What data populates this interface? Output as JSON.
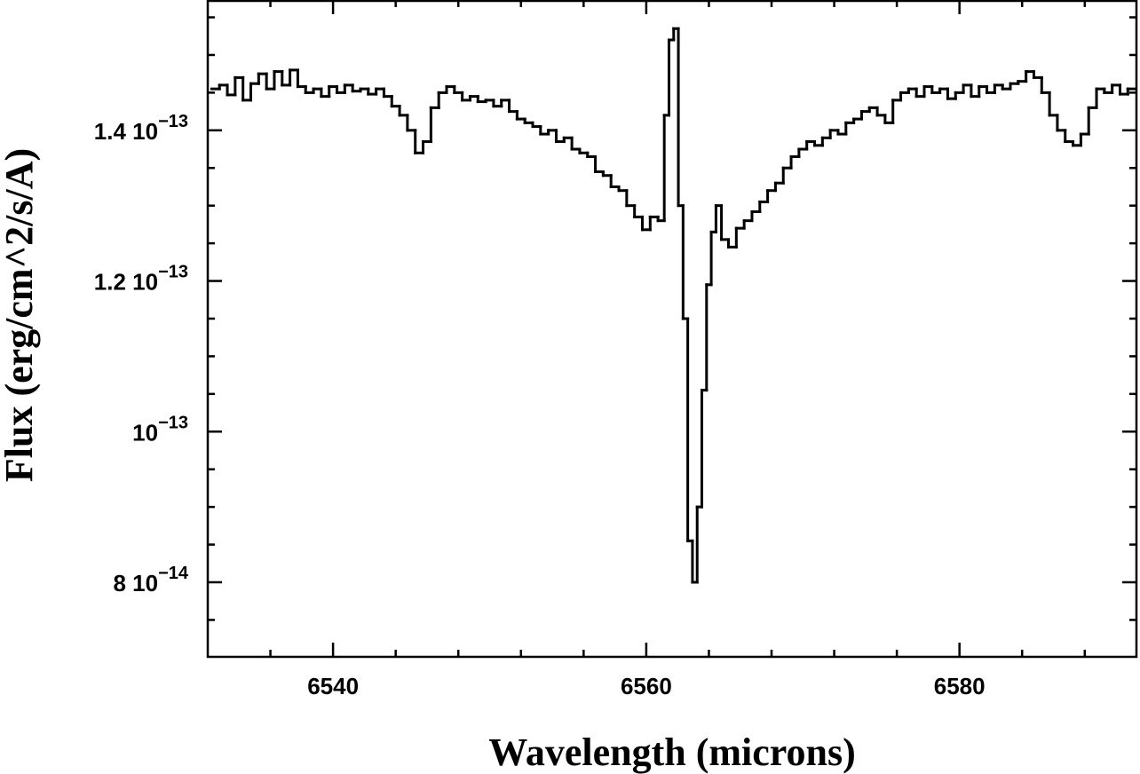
{
  "chart_data": {
    "type": "line",
    "drawstyle": "steps-mid",
    "color": "#000000",
    "xlabel": "Wavelength (microns)",
    "ylabel": "Flux (erg/cm^2/s/A)",
    "xlim": [
      6532,
      6591.3
    ],
    "ylim": [
      7.01e-14,
      1.573e-13
    ],
    "xticks": [
      6540,
      6560,
      6580
    ],
    "xticks_minor": [
      6536,
      6544,
      6548,
      6552,
      6556,
      6564,
      6568,
      6572,
      6576,
      6584,
      6588
    ],
    "yticks": [
      {
        "value": 8e-14,
        "label": "8 10",
        "exponent": "−14"
      },
      {
        "value": 1e-13,
        "label": "10",
        "exponent": "−13"
      },
      {
        "value": 1.2e-13,
        "label": "1.2 10",
        "exponent": "−13"
      },
      {
        "value": 1.4e-13,
        "label": "1.4 10",
        "exponent": "−13"
      }
    ],
    "yticks_minor": [
      7.5e-14,
      8.5e-14,
      9e-14,
      9.5e-14,
      1.05e-13,
      1.1e-13,
      1.15e-13,
      1.25e-13,
      1.3e-13,
      1.35e-13,
      1.45e-13,
      1.5e-13,
      1.55e-13
    ],
    "x": [
      6532.5,
      6533,
      6533.5,
      6534,
      6534.5,
      6535,
      6535.5,
      6536,
      6536.5,
      6537,
      6537.5,
      6538,
      6538.5,
      6539,
      6539.5,
      6540,
      6540.5,
      6541,
      6541.5,
      6542,
      6542.5,
      6543,
      6543.5,
      6544,
      6544.5,
      6545,
      6545.5,
      6546,
      6546.5,
      6547,
      6547.5,
      6548,
      6548.5,
      6549,
      6549.5,
      6550,
      6550.5,
      6551,
      6551.5,
      6552,
      6552.5,
      6553,
      6553.5,
      6554,
      6554.5,
      6555,
      6555.5,
      6556,
      6556.5,
      6557,
      6557.5,
      6558,
      6558.5,
      6559,
      6559.5,
      6560,
      6560.5,
      6561,
      6561.3,
      6561.6,
      6561.9,
      6562.2,
      6562.5,
      6562.8,
      6563.1,
      6563.4,
      6563.7,
      6564,
      6564.3,
      6564.6,
      6565,
      6565.5,
      6566,
      6566.5,
      6567,
      6567.5,
      6568,
      6568.5,
      6569,
      6569.5,
      6570,
      6570.5,
      6571,
      6571.5,
      6572,
      6572.5,
      6573,
      6573.5,
      6574,
      6574.5,
      6575,
      6575.5,
      6576,
      6576.5,
      6577,
      6577.5,
      6578,
      6578.5,
      6579,
      6579.5,
      6580,
      6580.5,
      6581,
      6581.5,
      6582,
      6582.5,
      6583,
      6583.5,
      6584,
      6584.5,
      6585,
      6585.5,
      6586,
      6586.5,
      6587,
      6587.5,
      6588,
      6588.5,
      6589,
      6589.5,
      6590,
      6590.5,
      6591
    ],
    "values": [
      1.455e-13,
      1.46e-13,
      1.447e-13,
      1.47e-13,
      1.44e-13,
      1.462e-13,
      1.475e-13,
      1.455e-13,
      1.478e-13,
      1.46e-13,
      1.48e-13,
      1.458e-13,
      1.45e-13,
      1.455e-13,
      1.445e-13,
      1.458e-13,
      1.45e-13,
      1.46e-13,
      1.452e-13,
      1.455e-13,
      1.448e-13,
      1.455e-13,
      1.445e-13,
      1.432e-13,
      1.42e-13,
      1.4e-13,
      1.37e-13,
      1.385e-13,
      1.43e-13,
      1.45e-13,
      1.458e-13,
      1.45e-13,
      1.44e-13,
      1.445e-13,
      1.438e-13,
      1.44e-13,
      1.432e-13,
      1.44e-13,
      1.425e-13,
      1.415e-13,
      1.41e-13,
      1.405e-13,
      1.395e-13,
      1.4e-13,
      1.385e-13,
      1.39e-13,
      1.375e-13,
      1.37e-13,
      1.365e-13,
      1.345e-13,
      1.34e-13,
      1.325e-13,
      1.32e-13,
      1.3e-13,
      1.285e-13,
      1.268e-13,
      1.285e-13,
      1.28e-13,
      1.42e-13,
      1.52e-13,
      1.535e-13,
      1.3e-13,
      1.15e-13,
      8.55e-14,
      8e-14,
      9e-14,
      1.055e-13,
      1.195e-13,
      1.265e-13,
      1.3e-13,
      1.255e-13,
      1.245e-13,
      1.27e-13,
      1.28e-13,
      1.292e-13,
      1.305e-13,
      1.32e-13,
      1.33e-13,
      1.35e-13,
      1.365e-13,
      1.375e-13,
      1.385e-13,
      1.38e-13,
      1.39e-13,
      1.4e-13,
      1.395e-13,
      1.41e-13,
      1.415e-13,
      1.425e-13,
      1.43e-13,
      1.42e-13,
      1.41e-13,
      1.44e-13,
      1.45e-13,
      1.455e-13,
      1.445e-13,
      1.458e-13,
      1.45e-13,
      1.455e-13,
      1.442e-13,
      1.45e-13,
      1.46e-13,
      1.445e-13,
      1.458e-13,
      1.45e-13,
      1.46e-13,
      1.455e-13,
      1.462e-13,
      1.465e-13,
      1.478e-13,
      1.47e-13,
      1.45e-13,
      1.42e-13,
      1.4e-13,
      1.385e-13,
      1.38e-13,
      1.395e-13,
      1.43e-13,
      1.455e-13,
      1.45e-13,
      1.46e-13,
      1.448e-13,
      1.455e-13
    ]
  }
}
